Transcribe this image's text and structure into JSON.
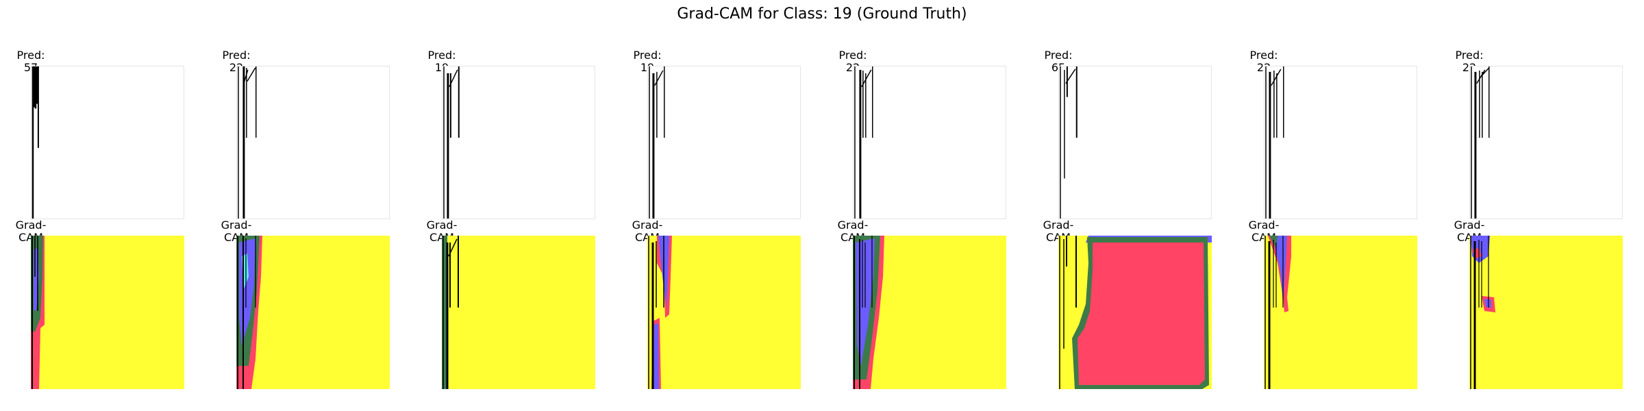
{
  "figure": {
    "suptitle": "Grad-CAM for Class: 19 (Ground Truth)"
  },
  "chart_data": {
    "type": "image-grid",
    "title": "Grad-CAM for Class: 19 (Ground Truth)",
    "ground_truth_class": 19,
    "rows": [
      {
        "kind": "input",
        "panels": [
          {
            "title": "Pred: 57",
            "pred": 57
          },
          {
            "title": "Pred: 22",
            "pred": 22
          },
          {
            "title": "Pred: 19",
            "pred": 19
          },
          {
            "title": "Pred: 19",
            "pred": 19
          },
          {
            "title": "Pred: 22",
            "pred": 22
          },
          {
            "title": "Pred: 65",
            "pred": 65
          },
          {
            "title": "Pred: 22",
            "pred": 22
          },
          {
            "title": "Pred: 22",
            "pred": 22
          }
        ]
      },
      {
        "kind": "gradcam",
        "panels": [
          {
            "title": "Grad-CAM"
          },
          {
            "title": "Grad-CAM"
          },
          {
            "title": "Grad-CAM"
          },
          {
            "title": "Grad-CAM"
          },
          {
            "title": "Grad-CAM"
          },
          {
            "title": "Grad-CAM"
          },
          {
            "title": "Grad-CAM"
          },
          {
            "title": "Grad-CAM"
          }
        ]
      }
    ],
    "colors": {
      "heatmap_background": "#ffff33",
      "heat_red": "#ff4466",
      "heat_green": "#3d7a4a",
      "heat_blue": "#6a5cff",
      "heat_cyan": "#5de8e8",
      "stroke": "#000000"
    },
    "axes_visible": false
  }
}
